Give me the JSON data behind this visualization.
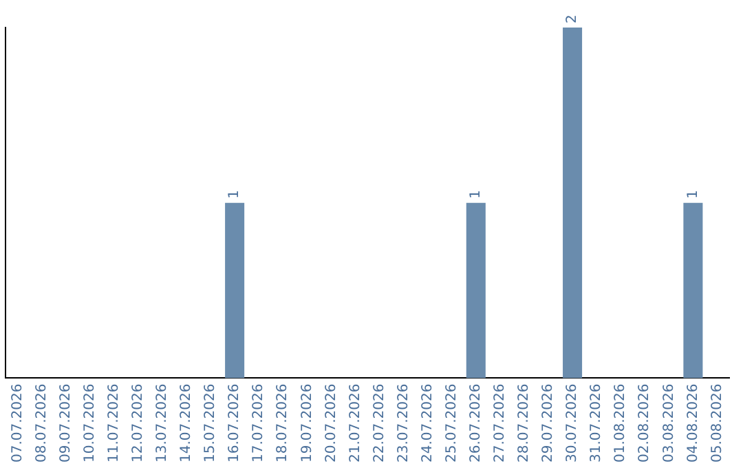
{
  "chart_data": {
    "type": "bar",
    "categories": [
      "07.07.2026",
      "08.07.2026",
      "09.07.2026",
      "10.07.2026",
      "11.07.2026",
      "12.07.2026",
      "13.07.2026",
      "14.07.2026",
      "15.07.2026",
      "16.07.2026",
      "17.07.2026",
      "18.07.2026",
      "19.07.2026",
      "20.07.2026",
      "21.07.2026",
      "22.07.2026",
      "23.07.2026",
      "24.07.2026",
      "25.07.2026",
      "26.07.2026",
      "27.07.2026",
      "28.07.2026",
      "29.07.2026",
      "30.07.2026",
      "31.07.2026",
      "01.08.2026",
      "02.08.2026",
      "03.08.2026",
      "04.08.2026",
      "05.08.2026"
    ],
    "values": [
      0,
      0,
      0,
      0,
      0,
      0,
      0,
      0,
      0,
      1,
      0,
      0,
      0,
      0,
      0,
      0,
      0,
      0,
      0,
      1,
      0,
      0,
      0,
      2,
      0,
      0,
      0,
      0,
      1,
      0
    ],
    "value_labels": [
      null,
      null,
      null,
      null,
      null,
      null,
      null,
      null,
      null,
      "1",
      null,
      null,
      null,
      null,
      null,
      null,
      null,
      null,
      null,
      "1",
      null,
      null,
      null,
      "2",
      null,
      null,
      null,
      null,
      "1",
      null
    ],
    "color": "#6a8cad",
    "grid": false,
    "legend": false,
    "tick_labels": "x"
  }
}
